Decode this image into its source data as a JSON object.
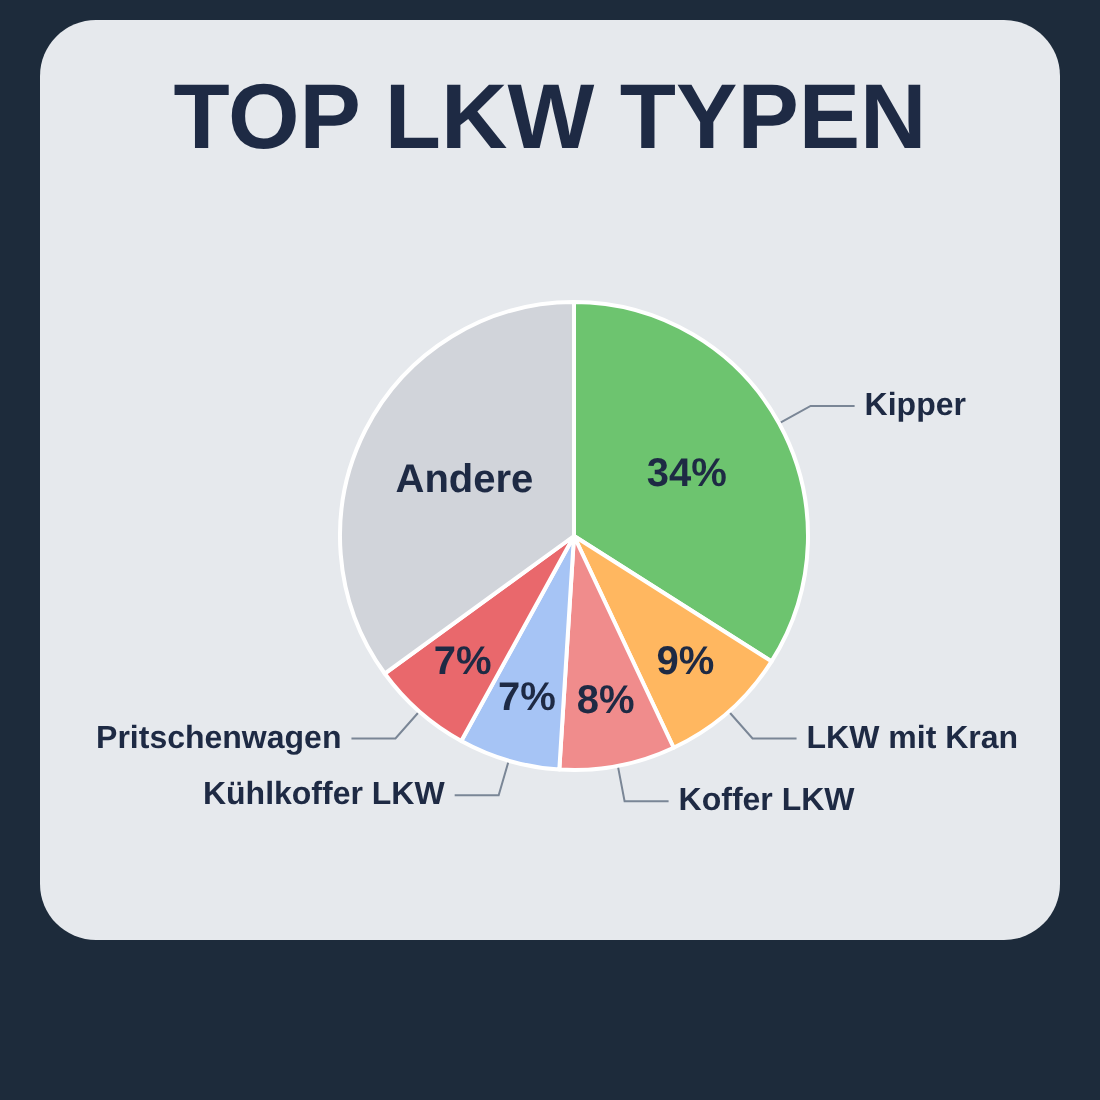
{
  "chart_data": {
    "type": "pie",
    "title": "TOP LKW TYPEN",
    "categories": [
      "Kipper",
      "LKW mit Kran",
      "Koffer LKW",
      "Kühlkoffer LKW",
      "Pritschenwagen",
      "Andere"
    ],
    "values": [
      34,
      9,
      8,
      7,
      7,
      35
    ],
    "value_labels": [
      "34%",
      "9%",
      "8%",
      "7%",
      "7%",
      null
    ],
    "colors": [
      "#6dc46f",
      "#ffb760",
      "#f08c8c",
      "#a6c4f5",
      "#e9686c",
      "#d1d4da"
    ]
  }
}
